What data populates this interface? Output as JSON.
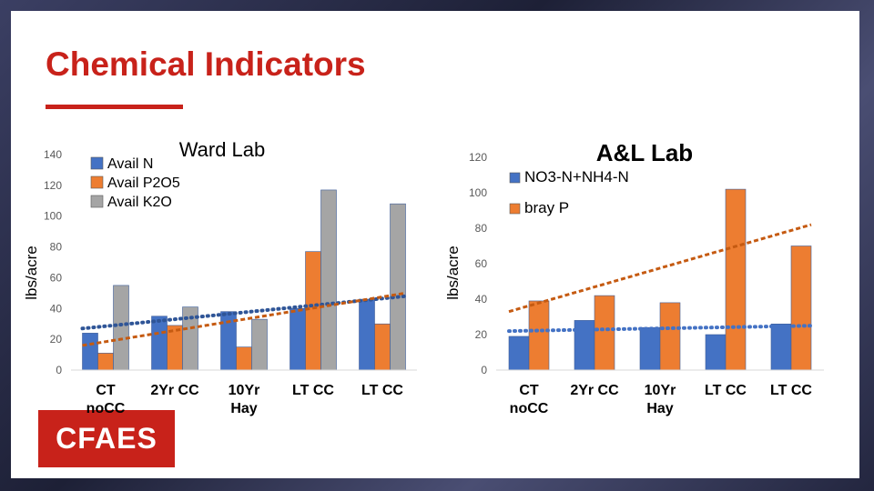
{
  "slide": {
    "title": "Chemical Indicators",
    "logo": "CFAES"
  },
  "colors": {
    "accent": "#c8221a",
    "blue": "#4472c4",
    "orange": "#ed7d31",
    "gray": "#a5a5a5",
    "trend_blue": "#2f5597",
    "trend_orange": "#c55a11"
  },
  "chart_data": [
    {
      "type": "bar",
      "title": "Ward Lab",
      "ylabel": "lbs/acre",
      "xlabel": "",
      "categories": [
        "CT noCC",
        "2Yr CC",
        "10Yr Hay",
        "LT CC",
        "LT CC"
      ],
      "category_lines": [
        [
          "CT",
          "noCC"
        ],
        [
          "2Yr CC"
        ],
        [
          "10Yr",
          "Hay"
        ],
        [
          "LT CC"
        ],
        [
          "LT CC"
        ]
      ],
      "ylim": [
        0,
        140
      ],
      "yticks": [
        0,
        20,
        40,
        60,
        80,
        100,
        120,
        140
      ],
      "series": [
        {
          "name": "Avail N",
          "color": "#4472c4",
          "values": [
            24,
            35,
            38,
            40,
            46
          ]
        },
        {
          "name": "Avail P2O5",
          "color": "#ed7d31",
          "values": [
            11,
            29,
            15,
            77,
            30
          ]
        },
        {
          "name": "Avail K2O",
          "color": "#a5a5a5",
          "values": [
            55,
            41,
            33,
            117,
            108
          ]
        }
      ],
      "trendlines": [
        {
          "series": "Avail N",
          "start": 27,
          "end": 48
        },
        {
          "series": "Avail P2O5",
          "start": 16,
          "end": 50
        }
      ],
      "legend": "top-left",
      "grid": false
    },
    {
      "type": "bar",
      "title": "A&L Lab",
      "ylabel": "lbs/acre",
      "xlabel": "",
      "categories": [
        "CT noCC",
        "2Yr CC",
        "10Yr Hay",
        "LT CC",
        "LT CC"
      ],
      "category_lines": [
        [
          "CT",
          "noCC"
        ],
        [
          "2Yr CC"
        ],
        [
          "10Yr",
          "Hay"
        ],
        [
          "LT CC"
        ],
        [
          "LT CC"
        ]
      ],
      "ylim": [
        0,
        120
      ],
      "yticks": [
        0,
        20,
        40,
        60,
        80,
        100,
        120
      ],
      "series": [
        {
          "name": "NO3-N+NH4-N",
          "color": "#4472c4",
          "values": [
            19,
            28,
            24,
            20,
            26
          ]
        },
        {
          "name": "bray P",
          "color": "#ed7d31",
          "values": [
            39,
            42,
            38,
            102,
            70
          ]
        }
      ],
      "trendlines": [
        {
          "series": "NO3-N+NH4-N",
          "start": 22,
          "end": 25
        },
        {
          "series": "bray P",
          "start": 33,
          "end": 82
        }
      ],
      "legend": "top-right",
      "grid": false
    }
  ]
}
